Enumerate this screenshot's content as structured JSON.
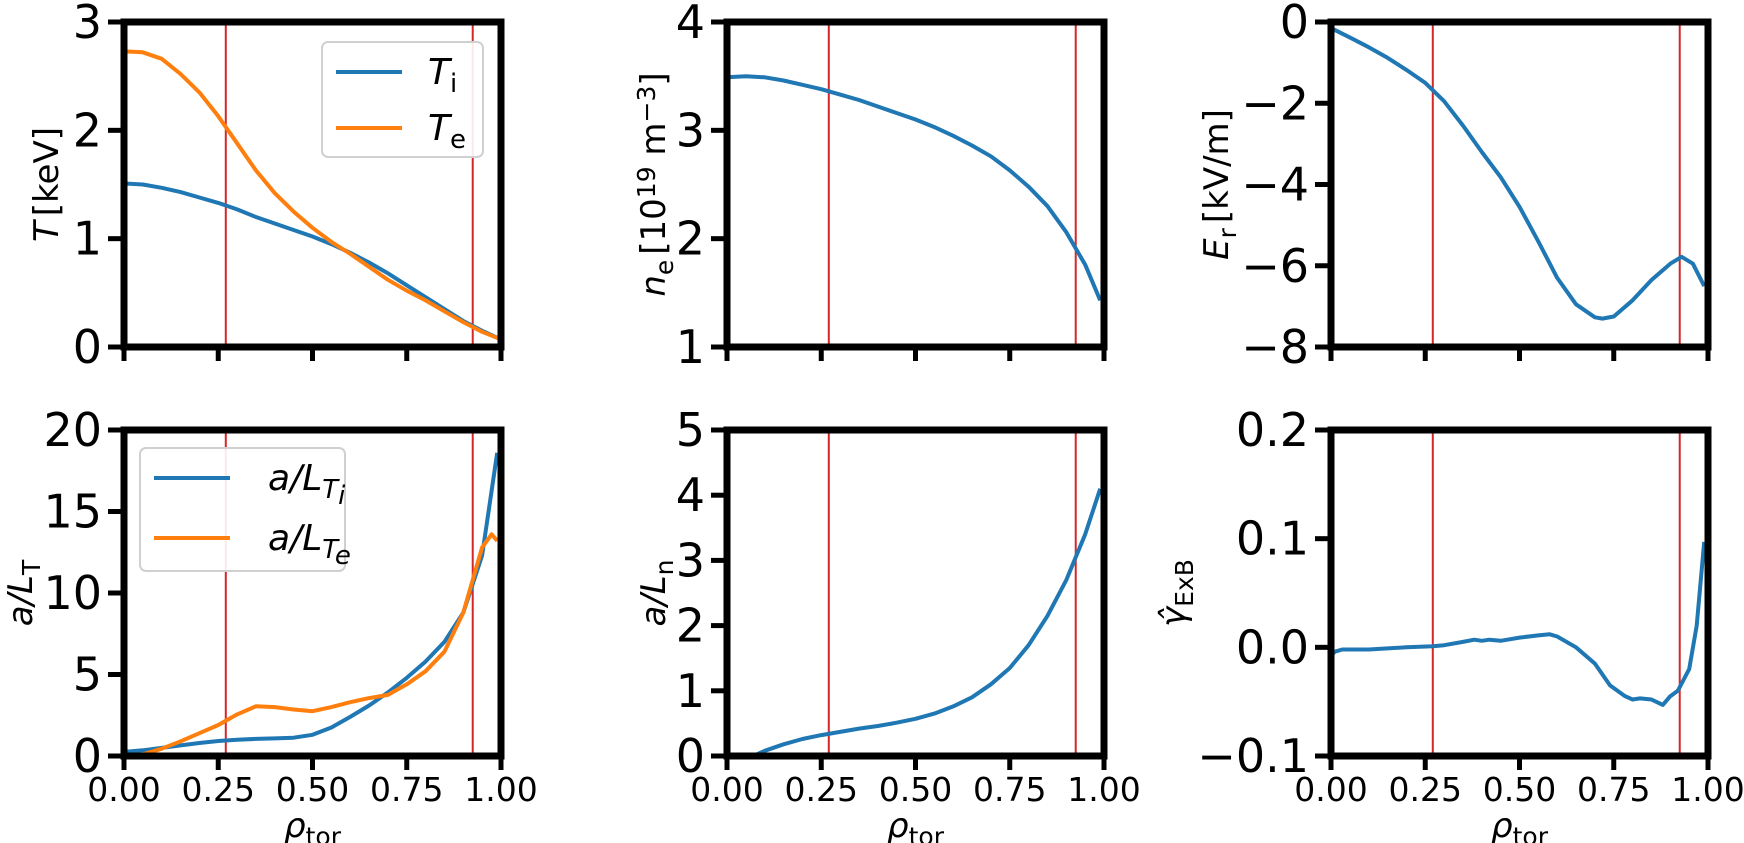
{
  "chart_data": [
    {
      "id": "p1",
      "type": "line",
      "ylabel": {
        "main": "T",
        "unit": "[keV]"
      },
      "xlim": [
        0,
        1
      ],
      "ylim": [
        0,
        3
      ],
      "yticks": [
        0,
        1,
        2,
        3
      ],
      "ytick_labels": [
        "0",
        "1",
        "2",
        "3"
      ],
      "xticks": [
        0,
        0.25,
        0.5,
        0.75,
        1.0
      ],
      "xtick_labels": [],
      "vlines": [
        0.27,
        0.925
      ],
      "legend": {
        "position": "top-right",
        "entries": [
          {
            "main": "T",
            "sub": "i",
            "color": "#1f77b4"
          },
          {
            "main": "T",
            "sub": "e",
            "color": "#ff7f0e"
          }
        ]
      },
      "series": [
        {
          "name": "T_i",
          "color": "#1f77b4",
          "x": [
            0,
            0.05,
            0.1,
            0.15,
            0.2,
            0.25,
            0.3,
            0.35,
            0.4,
            0.45,
            0.5,
            0.55,
            0.6,
            0.65,
            0.7,
            0.75,
            0.8,
            0.85,
            0.9,
            0.95,
            1.0
          ],
          "y": [
            1.51,
            1.5,
            1.47,
            1.43,
            1.38,
            1.33,
            1.27,
            1.2,
            1.14,
            1.08,
            1.02,
            0.95,
            0.87,
            0.78,
            0.68,
            0.57,
            0.46,
            0.35,
            0.24,
            0.15,
            0.07
          ]
        },
        {
          "name": "T_e",
          "color": "#ff7f0e",
          "x": [
            0,
            0.05,
            0.1,
            0.15,
            0.2,
            0.25,
            0.3,
            0.35,
            0.4,
            0.45,
            0.5,
            0.55,
            0.6,
            0.65,
            0.7,
            0.75,
            0.8,
            0.85,
            0.9,
            0.95,
            1.0
          ],
          "y": [
            2.73,
            2.72,
            2.66,
            2.52,
            2.35,
            2.13,
            1.88,
            1.63,
            1.42,
            1.25,
            1.1,
            0.97,
            0.86,
            0.74,
            0.62,
            0.52,
            0.43,
            0.33,
            0.23,
            0.14,
            0.07
          ]
        }
      ]
    },
    {
      "id": "p2",
      "type": "line",
      "ylabel": {
        "main": "n",
        "sub": "e",
        "unit": "[10",
        "exp": "19",
        "unit2": " m",
        "exp2": "−3",
        "unit3": "]"
      },
      "xlim": [
        0,
        1
      ],
      "ylim": [
        1,
        4
      ],
      "yticks": [
        1,
        2,
        3,
        4
      ],
      "ytick_labels": [
        "1",
        "2",
        "3",
        "4"
      ],
      "xticks": [
        0,
        0.25,
        0.5,
        0.75,
        1.0
      ],
      "xtick_labels": [],
      "vlines": [
        0.27,
        0.925
      ],
      "series": [
        {
          "name": "n_e",
          "color": "#1f77b4",
          "x": [
            0,
            0.05,
            0.1,
            0.15,
            0.2,
            0.25,
            0.3,
            0.35,
            0.4,
            0.45,
            0.5,
            0.55,
            0.6,
            0.65,
            0.7,
            0.75,
            0.8,
            0.85,
            0.9,
            0.95,
            0.99
          ],
          "y": [
            3.49,
            3.5,
            3.49,
            3.46,
            3.42,
            3.38,
            3.33,
            3.28,
            3.22,
            3.16,
            3.1,
            3.03,
            2.95,
            2.86,
            2.76,
            2.63,
            2.48,
            2.3,
            2.06,
            1.76,
            1.43
          ]
        }
      ]
    },
    {
      "id": "p3",
      "type": "line",
      "ylabel": {
        "main": "E",
        "sub": "r",
        "unit": "[kV/m]"
      },
      "xlim": [
        0,
        1
      ],
      "ylim": [
        -8,
        0
      ],
      "yticks": [
        0,
        -2,
        -4,
        -6,
        -8
      ],
      "ytick_labels": [
        "0",
        "−2",
        "−4",
        "−6",
        "−8"
      ],
      "xticks": [
        0,
        0.25,
        0.5,
        0.75,
        1.0
      ],
      "xtick_labels": [],
      "vlines": [
        0.27,
        0.925
      ],
      "series": [
        {
          "name": "E_r",
          "color": "#1f77b4",
          "x": [
            0,
            0.05,
            0.1,
            0.15,
            0.2,
            0.25,
            0.3,
            0.35,
            0.4,
            0.45,
            0.5,
            0.55,
            0.6,
            0.65,
            0.7,
            0.72,
            0.75,
            0.8,
            0.85,
            0.9,
            0.93,
            0.96,
            0.99
          ],
          "y": [
            -0.15,
            -0.38,
            -0.62,
            -0.88,
            -1.18,
            -1.5,
            -1.95,
            -2.55,
            -3.2,
            -3.82,
            -4.55,
            -5.4,
            -6.3,
            -6.95,
            -7.27,
            -7.3,
            -7.25,
            -6.85,
            -6.35,
            -5.95,
            -5.78,
            -5.95,
            -6.5
          ]
        }
      ]
    },
    {
      "id": "p4",
      "type": "line",
      "ylabel": {
        "main": "a/L",
        "sub": "T"
      },
      "xlim": [
        0,
        1
      ],
      "ylim": [
        0,
        20
      ],
      "yticks": [
        0,
        5,
        10,
        15,
        20
      ],
      "ytick_labels": [
        "0",
        "5",
        "10",
        "15",
        "20"
      ],
      "xticks": [
        0,
        0.25,
        0.5,
        0.75,
        1.0
      ],
      "xtick_labels": [
        "0.00",
        "0.25",
        "0.50",
        "0.75",
        "1.00"
      ],
      "xlabel": {
        "main": "ρ",
        "sub": "tor"
      },
      "vlines": [
        0.27,
        0.925
      ],
      "legend": {
        "position": "top-left",
        "entries": [
          {
            "main": "a/L",
            "sub": "T",
            "subsub": "i",
            "color": "#1f77b4"
          },
          {
            "main": "a/L",
            "sub": "T",
            "subsub": "e",
            "color": "#ff7f0e"
          }
        ]
      },
      "series": [
        {
          "name": "a/L_Ti",
          "color": "#1f77b4",
          "x": [
            0,
            0.05,
            0.1,
            0.15,
            0.2,
            0.25,
            0.3,
            0.35,
            0.4,
            0.45,
            0.5,
            0.55,
            0.6,
            0.65,
            0.7,
            0.75,
            0.8,
            0.85,
            0.9,
            0.95,
            0.99
          ],
          "y": [
            0.25,
            0.35,
            0.5,
            0.65,
            0.8,
            0.92,
            1.0,
            1.05,
            1.08,
            1.12,
            1.3,
            1.75,
            2.4,
            3.1,
            3.9,
            4.8,
            5.8,
            7.0,
            8.8,
            12.3,
            18.6
          ]
        },
        {
          "name": "a/L_Te",
          "color": "#ff7f0e",
          "x": [
            0,
            0.05,
            0.1,
            0.15,
            0.2,
            0.25,
            0.3,
            0.35,
            0.4,
            0.45,
            0.5,
            0.55,
            0.6,
            0.65,
            0.7,
            0.75,
            0.8,
            0.85,
            0.9,
            0.95,
            0.975,
            0.99
          ],
          "y": [
            0.0,
            0.1,
            0.45,
            0.9,
            1.4,
            1.9,
            2.55,
            3.05,
            3.0,
            2.85,
            2.75,
            3.0,
            3.3,
            3.55,
            3.75,
            4.4,
            5.2,
            6.4,
            8.8,
            12.8,
            13.6,
            13.2
          ]
        }
      ]
    },
    {
      "id": "p5",
      "type": "line",
      "ylabel": {
        "main": "a/L",
        "sub": "n"
      },
      "xlim": [
        0,
        1
      ],
      "ylim": [
        0,
        5
      ],
      "yticks": [
        0,
        1,
        2,
        3,
        4,
        5
      ],
      "ytick_labels": [
        "0",
        "1",
        "2",
        "3",
        "4",
        "5"
      ],
      "xticks": [
        0,
        0.25,
        0.5,
        0.75,
        1.0
      ],
      "xtick_labels": [
        "0.00",
        "0.25",
        "0.50",
        "0.75",
        "1.00"
      ],
      "xlabel": {
        "main": "ρ",
        "sub": "tor"
      },
      "vlines": [
        0.27,
        0.925
      ],
      "series": [
        {
          "name": "a/L_n",
          "color": "#1f77b4",
          "x": [
            0.07,
            0.1,
            0.15,
            0.2,
            0.25,
            0.3,
            0.35,
            0.4,
            0.45,
            0.5,
            0.55,
            0.6,
            0.65,
            0.7,
            0.75,
            0.8,
            0.85,
            0.9,
            0.95,
            0.99
          ],
          "y": [
            0.0,
            0.08,
            0.18,
            0.26,
            0.32,
            0.37,
            0.42,
            0.46,
            0.51,
            0.57,
            0.65,
            0.76,
            0.9,
            1.1,
            1.35,
            1.7,
            2.15,
            2.7,
            3.4,
            4.1
          ]
        }
      ]
    },
    {
      "id": "p6",
      "type": "line",
      "ylabel": {
        "main": "γ̂",
        "sub": "ExB"
      },
      "xlim": [
        0,
        1
      ],
      "ylim": [
        -0.1,
        0.2
      ],
      "yticks": [
        -0.1,
        0.0,
        0.1,
        0.2
      ],
      "ytick_labels": [
        "−0.1",
        "0.0",
        "0.1",
        "0.2"
      ],
      "xticks": [
        0,
        0.25,
        0.5,
        0.75,
        1.0
      ],
      "xtick_labels": [
        "0.00",
        "0.25",
        "0.50",
        "0.75",
        "1.00"
      ],
      "xlabel": {
        "main": "ρ",
        "sub": "tor"
      },
      "vlines": [
        0.27,
        0.925
      ],
      "series": [
        {
          "name": "gamma_ExB",
          "color": "#1f77b4",
          "x": [
            0.0,
            0.01,
            0.03,
            0.1,
            0.2,
            0.27,
            0.3,
            0.35,
            0.38,
            0.4,
            0.42,
            0.45,
            0.5,
            0.55,
            0.58,
            0.6,
            0.65,
            0.7,
            0.74,
            0.78,
            0.8,
            0.82,
            0.85,
            0.88,
            0.9,
            0.92,
            0.95,
            0.97,
            0.99
          ],
          "y": [
            -0.008,
            -0.004,
            -0.002,
            -0.002,
            0.0,
            0.001,
            0.002,
            0.005,
            0.007,
            0.006,
            0.007,
            0.006,
            0.009,
            0.011,
            0.012,
            0.01,
            0.0,
            -0.015,
            -0.035,
            -0.045,
            -0.048,
            -0.047,
            -0.048,
            -0.053,
            -0.045,
            -0.04,
            -0.02,
            0.02,
            0.097
          ]
        }
      ]
    }
  ]
}
